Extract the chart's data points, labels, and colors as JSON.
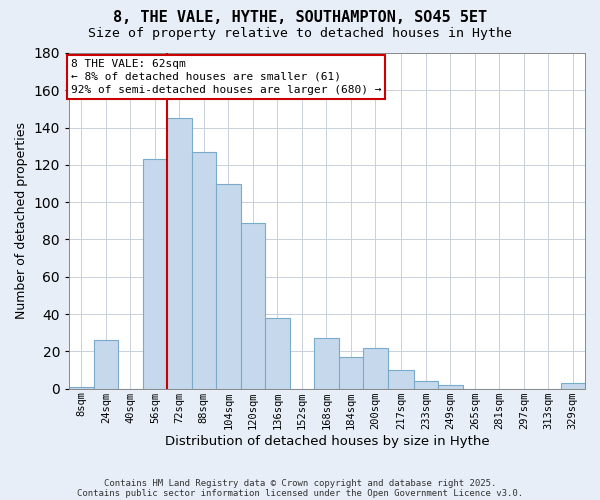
{
  "title": "8, THE VALE, HYTHE, SOUTHAMPTON, SO45 5ET",
  "subtitle": "Size of property relative to detached houses in Hythe",
  "xlabel": "Distribution of detached houses by size in Hythe",
  "ylabel": "Number of detached properties",
  "bin_labels": [
    "8sqm",
    "24sqm",
    "40sqm",
    "56sqm",
    "72sqm",
    "88sqm",
    "104sqm",
    "120sqm",
    "136sqm",
    "152sqm",
    "168sqm",
    "184sqm",
    "200sqm",
    "217sqm",
    "233sqm",
    "249sqm",
    "265sqm",
    "281sqm",
    "297sqm",
    "313sqm",
    "329sqm"
  ],
  "bar_values": [
    1,
    26,
    0,
    123,
    145,
    127,
    110,
    89,
    38,
    0,
    27,
    17,
    22,
    10,
    4,
    2,
    0,
    0,
    0,
    0,
    3
  ],
  "bar_color": "#c6d9ec",
  "bar_edge_color": "#7aaaca",
  "vline_x_idx": 3,
  "vline_color": "#cc0000",
  "ylim": [
    0,
    180
  ],
  "yticks": [
    0,
    20,
    40,
    60,
    80,
    100,
    120,
    140,
    160,
    180
  ],
  "annotation_title": "8 THE VALE: 62sqm",
  "annotation_line1": "← 8% of detached houses are smaller (61)",
  "annotation_line2": "92% of semi-detached houses are larger (680) →",
  "footnote1": "Contains HM Land Registry data © Crown copyright and database right 2025.",
  "footnote2": "Contains public sector information licensed under the Open Government Licence v3.0.",
  "bg_color": "#e8eef8",
  "plot_bg_color": "#ffffff",
  "grid_color": "#c8d0dc",
  "bin_centers": [
    8,
    24,
    40,
    56,
    72,
    88,
    104,
    120,
    136,
    152,
    168,
    184,
    200,
    217,
    233,
    249,
    265,
    281,
    297,
    313,
    329
  ],
  "vline_x": 64
}
